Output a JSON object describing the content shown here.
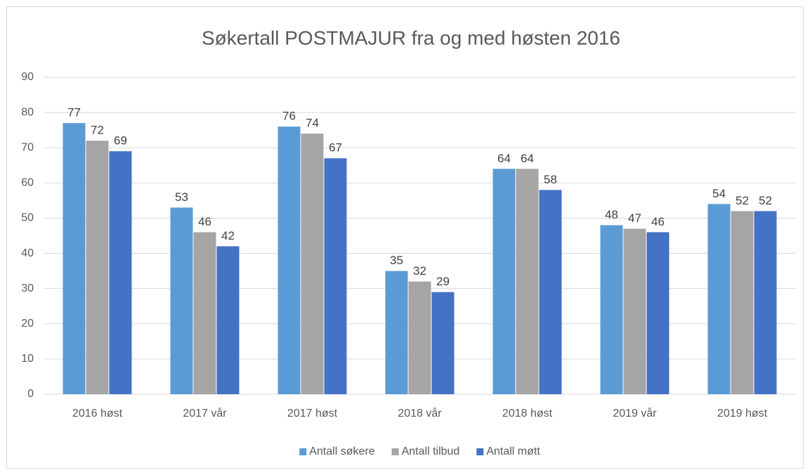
{
  "chart_data": {
    "type": "bar",
    "title": "Søkertall POSTMAJUR fra og med høsten 2016",
    "categories": [
      "2016 høst",
      "2017 vår",
      "2017 høst",
      "2018 vår",
      "2018 høst",
      "2019 vår",
      "2019 høst"
    ],
    "series": [
      {
        "name": "Antall søkere",
        "color": "#5b9bd5",
        "values": [
          77,
          53,
          76,
          35,
          64,
          48,
          54
        ]
      },
      {
        "name": "Antall tilbud",
        "color": "#a5a5a5",
        "values": [
          72,
          46,
          74,
          32,
          64,
          47,
          52
        ]
      },
      {
        "name": "Antall møtt",
        "color": "#4472c4",
        "values": [
          69,
          42,
          67,
          29,
          58,
          46,
          52
        ]
      }
    ],
    "ylim": [
      0,
      90
    ],
    "yticks": [
      0,
      10,
      20,
      30,
      40,
      50,
      60,
      70,
      80,
      90
    ],
    "grid": true,
    "legend": "bottom"
  }
}
